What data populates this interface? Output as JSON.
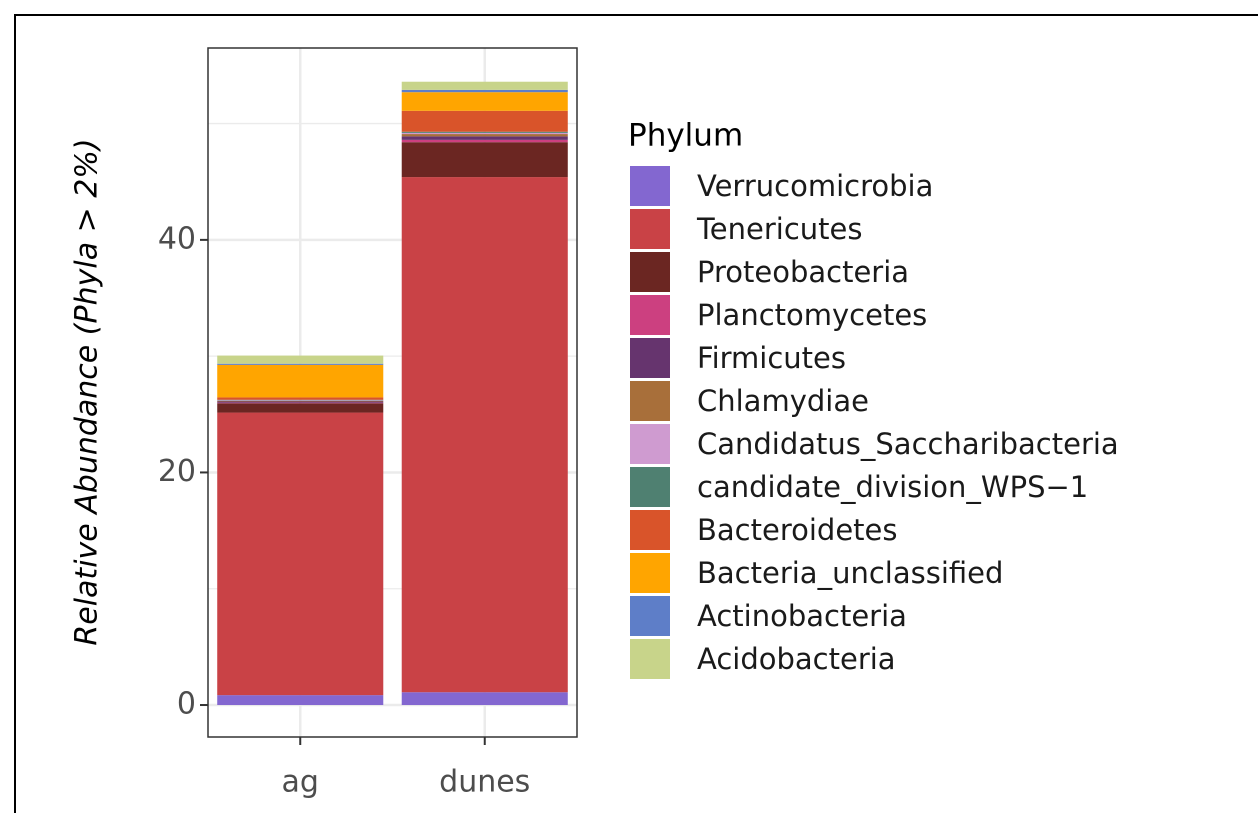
{
  "chart_data": {
    "type": "stacked_bar",
    "y_label": "Relative Abundance (Phyla > 2%)",
    "legend_title": "Phylum",
    "categories": [
      "ag",
      "dunes"
    ],
    "series": [
      {
        "name": "Verrucomicrobia",
        "color": "#8367d0",
        "values": [
          0.85,
          1.1
        ]
      },
      {
        "name": "Tenericutes",
        "color": "#c94246",
        "values": [
          24.3,
          44.3
        ]
      },
      {
        "name": "Proteobacteria",
        "color": "#6b2622",
        "values": [
          0.8,
          3.0
        ]
      },
      {
        "name": "Planctomycetes",
        "color": "#cc4080",
        "values": [
          0.05,
          0.2
        ]
      },
      {
        "name": "Firmicutes",
        "color": "#66346e",
        "values": [
          0.1,
          0.3
        ]
      },
      {
        "name": "Chlamydiae",
        "color": "#a86f3a",
        "values": [
          0.05,
          0.2
        ]
      },
      {
        "name": "Candidatus_Saccharibacteria",
        "color": "#cf9bd0",
        "values": [
          0.05,
          0.1
        ]
      },
      {
        "name": "candidate_division_WPS−1",
        "color": "#4f8071",
        "values": [
          0.05,
          0.1
        ]
      },
      {
        "name": "Bacteroidetes",
        "color": "#d9542a",
        "values": [
          0.2,
          1.8
        ]
      },
      {
        "name": "Bacteria_unclassified",
        "color": "#ffa500",
        "values": [
          2.8,
          1.6
        ]
      },
      {
        "name": "Actinobacteria",
        "color": "#5e7ec8",
        "values": [
          0.1,
          0.2
        ]
      },
      {
        "name": "Acidobacteria",
        "color": "#c8d48a",
        "values": [
          0.7,
          0.7
        ]
      }
    ],
    "ylim": [
      -2.75,
      56.5
    ],
    "yticks": [
      0,
      20,
      40
    ],
    "minor_yticks": [
      10,
      30,
      50
    ],
    "grid": true
  }
}
